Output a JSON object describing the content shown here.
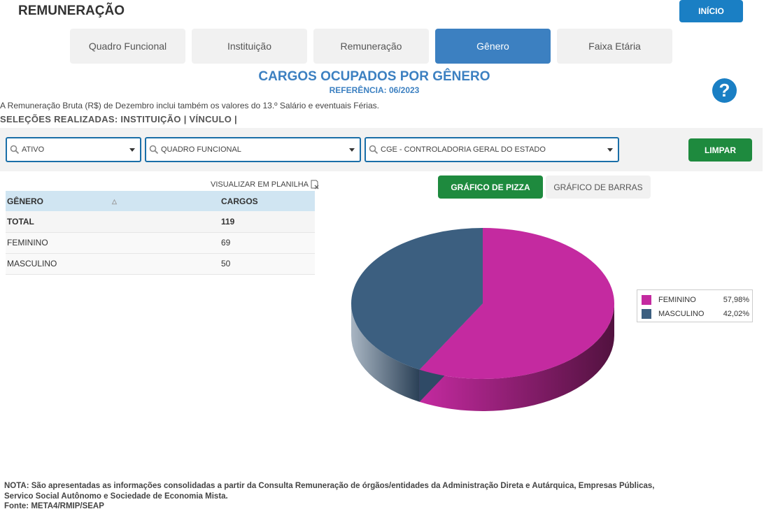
{
  "header": {
    "title": "REMUNERAÇÃO",
    "home_label": "INÍCIO"
  },
  "tabs": [
    {
      "label": "Quadro Funcional",
      "active": false
    },
    {
      "label": "Instituição",
      "active": false
    },
    {
      "label": "Remuneração",
      "active": false
    },
    {
      "label": "Gênero",
      "active": true
    },
    {
      "label": "Faixa Etária",
      "active": false
    }
  ],
  "section": {
    "title": "CARGOS OCUPADOS POR GÊNERO",
    "reference": "REFERÊNCIA: 06/2023"
  },
  "info_text": "A Remuneração Bruta (R$) de Dezembro inclui também os valores do 13.º Salário e eventuais Férias.",
  "selections_text": "SELEÇÕES REALIZADAS: INSTITUIÇÃO |  VÍNCULO |",
  "filters": {
    "vinculo": "ATIVO",
    "quadro": "QUADRO FUNCIONAL",
    "instituicao": "CGE - CONTROLADORIA GERAL DO ESTADO",
    "clear_label": "LIMPAR"
  },
  "table": {
    "sheet_link": "VISUALIZAR EM PLANILHA",
    "headers": [
      "GÊNERO",
      "CARGOS"
    ],
    "sort_glyph": "△",
    "total": {
      "label": "TOTAL",
      "value": "119"
    },
    "rows": [
      {
        "label": "FEMININO",
        "value": "69"
      },
      {
        "label": "MASCULINO",
        "value": "50"
      }
    ]
  },
  "chart_buttons": {
    "pie": "GRÁFICO DE PIZZA",
    "bar": "GRÁFICO DE BARRAS"
  },
  "chart_data": {
    "type": "pie",
    "style": "3d",
    "slices": [
      {
        "label": "FEMININO",
        "value": 69,
        "percent": "57,98%",
        "color": "#c42aa0",
        "side_dark": "#52123f"
      },
      {
        "label": "MASCULINO",
        "value": 50,
        "percent": "42,02%",
        "color": "#3c5f80",
        "side_dark": "#2a4056"
      }
    ],
    "legend_position": "right"
  },
  "help_glyph": "?",
  "note": {
    "line1": "NOTA: São apresentadas as informações consolidadas a partir da Consulta Remuneração de órgãos/entidades da Administração Direta e Autárquica, Empresas Públicas,",
    "line2": "Servico Social Autônomo e Sociedade de Economia Mista.",
    "line3": "Fonte: META4/RMIP/SEAP"
  }
}
